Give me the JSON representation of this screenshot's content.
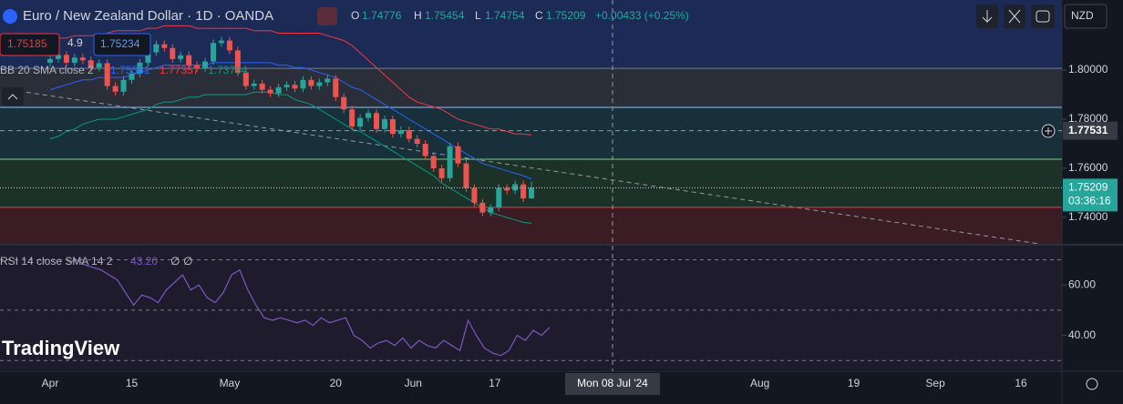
{
  "header": {
    "title": "Euro / New Zealand Dollar · 1D · OANDA",
    "o": "O",
    "h": "H",
    "l": "L",
    "c": "C",
    "change": "+0.00433 (+0.25%)",
    "sell": 1.75185,
    "spread": 4.9,
    "buy": 1.75234,
    "currency": "NZD",
    "logo": "TradingView"
  },
  "chart_data": {
    "type": "candlestick",
    "open": [
      1.803,
      1.8045,
      1.8062,
      1.803,
      1.8051,
      1.804,
      1.801,
      1.8028,
      1.7935,
      1.7912,
      1.796,
      1.7985,
      1.803,
      1.8072,
      1.8105,
      1.809,
      1.8045,
      1.806,
      1.802,
      1.8008,
      1.8035,
      1.811,
      1.812,
      1.808,
      1.799,
      1.7935,
      1.7945,
      1.792,
      1.7905,
      1.793,
      1.794,
      1.7925,
      1.796,
      1.7935,
      1.795,
      1.7965,
      1.789,
      1.784,
      1.777,
      1.7805,
      1.7825,
      1.776,
      1.78,
      1.774,
      1.7755,
      1.772,
      1.77,
      1.765,
      1.76,
      1.756,
      1.769,
      1.762,
      1.752,
      1.746,
      1.742,
      1.744,
      1.752,
      1.751,
      1.7535,
      1.74776
    ],
    "high": [
      1.806,
      1.8077,
      1.8077,
      1.8066,
      1.8066,
      1.8055,
      1.8043,
      1.8043,
      1.795,
      1.7975,
      1.8,
      1.8045,
      1.8087,
      1.812,
      1.812,
      1.8105,
      1.8075,
      1.8075,
      1.8035,
      1.805,
      1.8125,
      1.8135,
      1.8135,
      1.8095,
      1.8005,
      1.796,
      1.796,
      1.7935,
      1.7945,
      1.7955,
      1.7955,
      1.7975,
      1.7975,
      1.7965,
      1.798,
      1.798,
      1.7905,
      1.7855,
      1.782,
      1.784,
      1.784,
      1.7815,
      1.7815,
      1.777,
      1.777,
      1.7735,
      1.7715,
      1.7665,
      1.7615,
      1.7705,
      1.7705,
      1.7635,
      1.7535,
      1.7475,
      1.7455,
      1.7535,
      1.7535,
      1.755,
      1.755,
      1.75454
    ],
    "low": [
      1.8015,
      1.803,
      1.8015,
      1.8015,
      1.8025,
      1.7995,
      1.7995,
      1.792,
      1.7897,
      1.7897,
      1.7945,
      1.797,
      1.8015,
      1.8057,
      1.8075,
      1.803,
      1.803,
      1.8005,
      1.7993,
      1.7993,
      1.802,
      1.8095,
      1.8065,
      1.7975,
      1.792,
      1.792,
      1.7905,
      1.789,
      1.789,
      1.7915,
      1.791,
      1.791,
      1.792,
      1.792,
      1.7935,
      1.7875,
      1.7825,
      1.7755,
      1.7755,
      1.779,
      1.7745,
      1.7745,
      1.7725,
      1.7725,
      1.7705,
      1.7685,
      1.7635,
      1.7585,
      1.7545,
      1.7545,
      1.7605,
      1.7505,
      1.7445,
      1.7405,
      1.7405,
      1.7425,
      1.7495,
      1.7495,
      1.7463,
      1.74754
    ],
    "close": [
      1.8045,
      1.8062,
      1.803,
      1.8051,
      1.804,
      1.801,
      1.8028,
      1.7935,
      1.7912,
      1.796,
      1.7985,
      1.803,
      1.8072,
      1.8105,
      1.809,
      1.8045,
      1.806,
      1.802,
      1.8008,
      1.8035,
      1.811,
      1.812,
      1.808,
      1.799,
      1.7935,
      1.7945,
      1.792,
      1.7905,
      1.793,
      1.794,
      1.7925,
      1.796,
      1.7935,
      1.795,
      1.7965,
      1.789,
      1.784,
      1.777,
      1.7805,
      1.7825,
      1.776,
      1.78,
      1.774,
      1.7755,
      1.772,
      1.77,
      1.765,
      1.76,
      1.756,
      1.769,
      1.762,
      1.752,
      1.746,
      1.742,
      1.744,
      1.752,
      1.751,
      1.7535,
      1.74776,
      1.75209
    ],
    "up_color": "#26a69a",
    "down_color": "#ef5350",
    "bb": {
      "name": "BB 20 SMA close 2",
      "series": [
        {
          "color": "#2962ff",
          "values": [
            1.792,
            1.793,
            1.794,
            1.795,
            1.796,
            1.796,
            1.797,
            1.797,
            1.797,
            1.797,
            1.798,
            1.799,
            1.8,
            1.801,
            1.802,
            1.802,
            1.802,
            1.802,
            1.802,
            1.802,
            1.803,
            1.803,
            1.803,
            1.803,
            1.803,
            1.803,
            1.803,
            1.803,
            1.802,
            1.802,
            1.801,
            1.801,
            1.8,
            1.799,
            1.798,
            1.797,
            1.795,
            1.793,
            1.792,
            1.79,
            1.788,
            1.786,
            1.784,
            1.782,
            1.78,
            1.778,
            1.776,
            1.774,
            1.772,
            1.77,
            1.768,
            1.766,
            1.764,
            1.762,
            1.761,
            1.76,
            1.759,
            1.758,
            1.757,
            1.75561
          ]
        },
        {
          "color": "#f23645",
          "values": [
            1.812,
            1.813,
            1.813,
            1.814,
            1.814,
            1.814,
            1.814,
            1.815,
            1.816,
            1.816,
            1.816,
            1.816,
            1.817,
            1.817,
            1.818,
            1.818,
            1.818,
            1.818,
            1.817,
            1.817,
            1.817,
            1.817,
            1.817,
            1.817,
            1.817,
            1.816,
            1.816,
            1.816,
            1.815,
            1.815,
            1.815,
            1.815,
            1.815,
            1.815,
            1.814,
            1.813,
            1.812,
            1.81,
            1.807,
            1.804,
            1.801,
            1.798,
            1.795,
            1.792,
            1.789,
            1.787,
            1.786,
            1.785,
            1.784,
            1.782,
            1.78,
            1.779,
            1.778,
            1.777,
            1.776,
            1.776,
            1.775,
            1.774,
            1.774,
            1.77357
          ]
        },
        {
          "color": "#089981",
          "values": [
            1.772,
            1.773,
            1.775,
            1.776,
            1.778,
            1.779,
            1.78,
            1.78,
            1.78,
            1.781,
            1.782,
            1.783,
            1.784,
            1.786,
            1.787,
            1.787,
            1.788,
            1.789,
            1.789,
            1.79,
            1.79,
            1.79,
            1.79,
            1.79,
            1.79,
            1.791,
            1.791,
            1.791,
            1.79,
            1.79,
            1.788,
            1.787,
            1.786,
            1.784,
            1.782,
            1.78,
            1.778,
            1.776,
            1.775,
            1.773,
            1.771,
            1.769,
            1.767,
            1.765,
            1.763,
            1.761,
            1.759,
            1.757,
            1.754,
            1.752,
            1.75,
            1.748,
            1.746,
            1.744,
            1.742,
            1.741,
            1.74,
            1.739,
            1.738,
            1.73764
          ]
        }
      ]
    },
    "rsi": {
      "name": "RSI 14 close SMA 14 2",
      "color": "#7e57c2",
      "last_label": "43.20",
      "na": [
        "∅",
        "∅"
      ],
      "values": [
        69,
        70,
        68,
        67,
        66,
        64,
        62,
        57,
        52,
        56,
        55,
        53,
        58,
        61,
        64,
        58,
        60,
        55,
        53,
        57,
        64,
        66,
        58,
        52,
        47,
        46,
        47,
        46,
        45,
        46,
        44,
        47,
        45,
        46,
        47,
        40,
        38,
        35,
        37,
        38,
        36,
        39,
        35,
        38,
        36,
        35,
        38,
        36,
        34,
        46,
        40,
        35,
        33,
        32,
        34,
        40,
        38,
        42,
        40,
        43.2
      ],
      "ylim": [
        26.5,
        75.6
      ],
      "yticks": [
        {
          "value": 60,
          "label": "60.00"
        },
        {
          "value": 40,
          "label": "40.00"
        }
      ],
      "levels": [
        70,
        50,
        30
      ]
    },
    "ylim": [
      1.72926,
      1.82852
    ],
    "yticks": [
      {
        "value": 1.8,
        "label": "1.80000"
      },
      {
        "value": 1.78,
        "label": "1.78000"
      },
      {
        "value": 1.76,
        "label": "1.76000"
      },
      {
        "value": 1.74,
        "label": "1.74000"
      }
    ],
    "levels": [
      {
        "value": 1.8007,
        "color": "#787b86"
      },
      {
        "value": 1.7848,
        "color": "#90bff9"
      },
      {
        "value": 1.7637,
        "color": "#81c784"
      },
      {
        "value": 1.7441,
        "color": "#f23645"
      }
    ],
    "xticks": [
      {
        "value": 0,
        "label": "Apr"
      },
      {
        "value": 10,
        "label": "15"
      },
      {
        "value": 22,
        "label": "May"
      },
      {
        "value": 35,
        "label": "20"
      },
      {
        "value": 44.5,
        "label": "Jun"
      },
      {
        "value": 54.5,
        "label": "17"
      },
      {
        "value": 87,
        "label": "Aug"
      },
      {
        "value": 98.5,
        "label": "19"
      },
      {
        "value": 108.5,
        "label": "Sep"
      },
      {
        "value": 119,
        "label": "16"
      }
    ],
    "crosshair": {
      "price": 1.77531,
      "date": "Mon 08 Jul '24"
    },
    "countdown": "03:36:16"
  }
}
